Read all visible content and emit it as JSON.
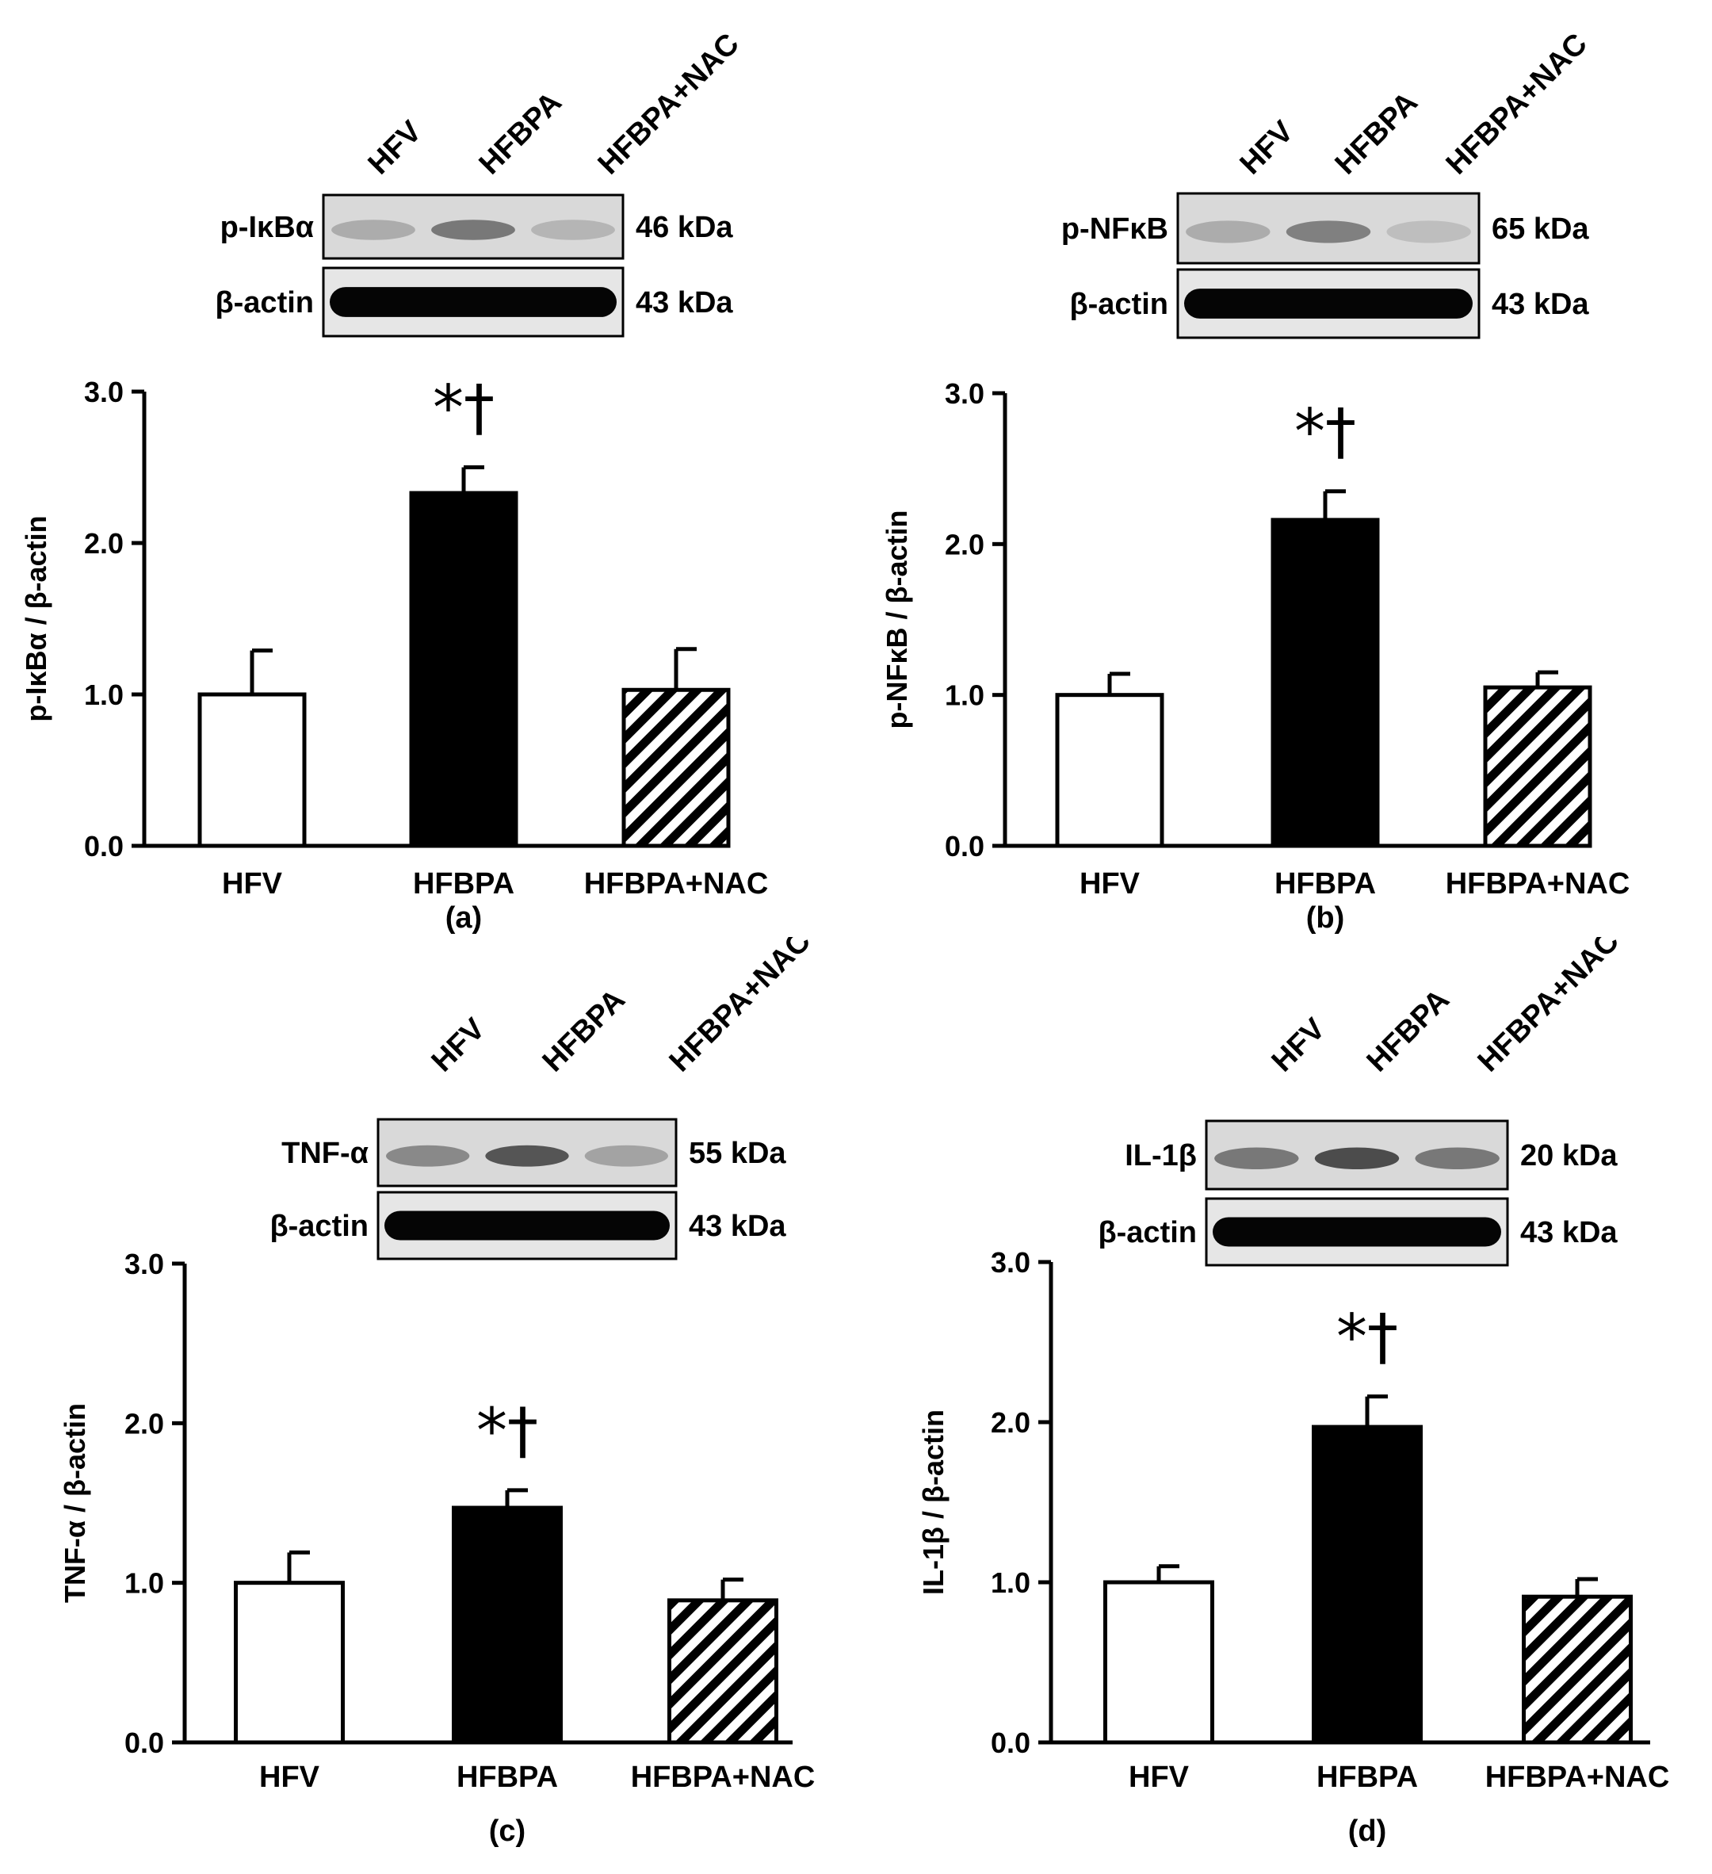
{
  "colors": {
    "hfv": "#ffffff",
    "hfbpa": "#000000",
    "outline": "#000000"
  },
  "chart_data": [
    {
      "type": "bar",
      "panel_label": "(a)",
      "categories": [
        "HFV",
        "HFBPA",
        "HFBPA+NAC"
      ],
      "values": [
        1.0,
        2.33,
        1.03
      ],
      "errors": [
        0.29,
        0.17,
        0.27
      ],
      "fills": [
        "white",
        "black",
        "hatched"
      ],
      "annotation": "*†",
      "annotation_index": 1,
      "ylabel": "p-IκBα / β-actin",
      "ylim": [
        0,
        3.0
      ],
      "yticks": [
        "0.0",
        "1.0",
        "2.0",
        "3.0"
      ],
      "blot": {
        "lanes": [
          "HFV",
          "HFBPA",
          "HFBPA+NAC"
        ],
        "target": "p-IκBα",
        "target_kda": "46 kDa",
        "control": "β-actin",
        "control_kda": "43 kDa"
      }
    },
    {
      "type": "bar",
      "panel_label": "(b)",
      "categories": [
        "HFV",
        "HFBPA",
        "HFBPA+NAC"
      ],
      "values": [
        1.0,
        2.16,
        1.05
      ],
      "errors": [
        0.14,
        0.19,
        0.1
      ],
      "fills": [
        "white",
        "black",
        "hatched"
      ],
      "annotation": "*†",
      "annotation_index": 1,
      "ylabel": "p-NFκB / β-actin",
      "ylim": [
        0,
        3.0
      ],
      "yticks": [
        "0.0",
        "1.0",
        "2.0",
        "3.0"
      ],
      "blot": {
        "lanes": [
          "HFV",
          "HFBPA",
          "HFBPA+NAC"
        ],
        "target": "p-NFκB",
        "target_kda": "65 kDa",
        "control": "β-actin",
        "control_kda": "43 kDa"
      }
    },
    {
      "type": "bar",
      "panel_label": "(c)",
      "categories": [
        "HFV",
        "HFBPA",
        "HFBPA+NAC"
      ],
      "values": [
        1.0,
        1.47,
        0.89
      ],
      "errors": [
        0.19,
        0.11,
        0.13
      ],
      "fills": [
        "white",
        "black",
        "hatched"
      ],
      "annotation": "*†",
      "annotation_index": 1,
      "ylabel": "TNF-α / β-actin",
      "ylim": [
        0,
        3.0
      ],
      "yticks": [
        "0.0",
        "1.0",
        "2.0",
        "3.0"
      ],
      "blot": {
        "lanes": [
          "HFV",
          "HFBPA",
          "HFBPA+NAC"
        ],
        "target": "TNF-α",
        "target_kda": "55 kDa",
        "control": "β-actin",
        "control_kda": "43 kDa"
      }
    },
    {
      "type": "bar",
      "panel_label": "(d)",
      "categories": [
        "HFV",
        "HFBPA",
        "HFBPA+NAC"
      ],
      "values": [
        1.0,
        1.97,
        0.91
      ],
      "errors": [
        0.1,
        0.19,
        0.11
      ],
      "fills": [
        "white",
        "black",
        "hatched"
      ],
      "annotation": "*†",
      "annotation_index": 1,
      "ylabel": "IL-1β / β-actin",
      "ylim": [
        0,
        3.0
      ],
      "yticks": [
        "0.0",
        "1.0",
        "2.0",
        "3.0"
      ],
      "blot": {
        "lanes": [
          "HFV",
          "HFBPA",
          "HFBPA+NAC"
        ],
        "target": "IL-1β",
        "target_kda": "20 kDa",
        "control": "β-actin",
        "control_kda": "43 kDa"
      }
    }
  ]
}
